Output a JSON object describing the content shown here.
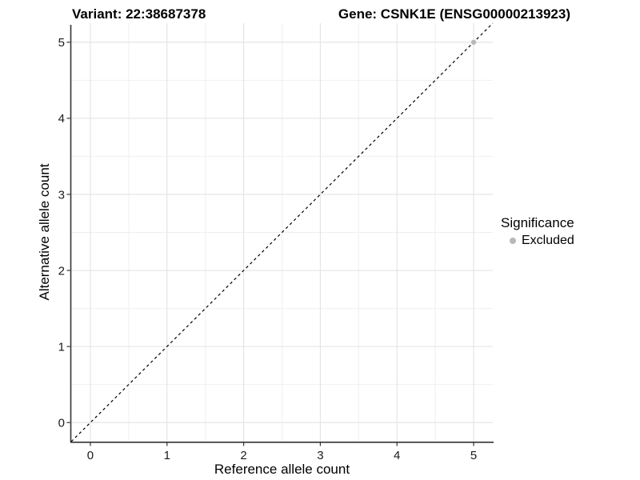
{
  "chart_data": {
    "type": "scatter",
    "title_variant": "Variant: 22:38687378",
    "title_gene": "Gene: CSNK1E (ENSG00000213923)",
    "xlabel": "Reference allele count",
    "ylabel": "Alternative allele count",
    "xlim": [
      -0.25,
      5.25
    ],
    "ylim": [
      -0.25,
      5.25
    ],
    "xticks": [
      0,
      1,
      2,
      3,
      4,
      5
    ],
    "yticks": [
      0,
      1,
      2,
      3,
      4,
      5
    ],
    "xminor": [
      0.5,
      1.5,
      2.5,
      3.5,
      4.5
    ],
    "yminor": [
      0.5,
      1.5,
      2.5,
      3.5,
      4.5
    ],
    "grid": {
      "on": true,
      "major_color": "#e3e3e3",
      "minor_color": "#efefef"
    },
    "axis_color": "#333333",
    "identity_line": {
      "slope": 1,
      "intercept": 0,
      "style": "dashed",
      "color": "#000000"
    },
    "series": [
      {
        "name": "Excluded",
        "color": "#b8b8b8",
        "points": [
          [
            5,
            5
          ]
        ]
      }
    ],
    "legend": {
      "title": "Significance",
      "position": "right",
      "entries": [
        {
          "label": "Excluded",
          "color": "#b8b8b8",
          "marker": "circle"
        }
      ]
    }
  }
}
